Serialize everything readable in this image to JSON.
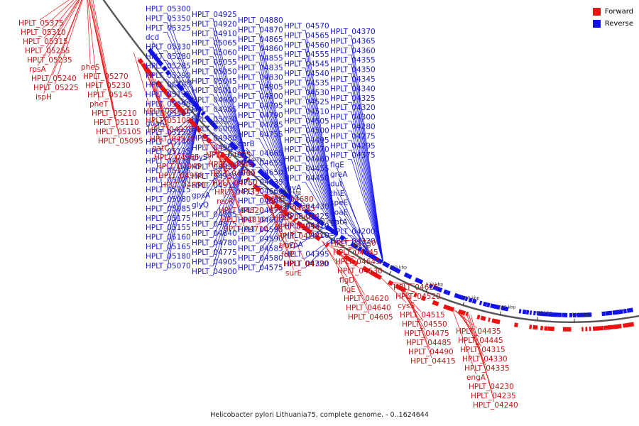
{
  "legend": {
    "forward": {
      "label": "Forward",
      "color": "#ee1111"
    },
    "reverse": {
      "label": "Reverse",
      "color": "#1111ee"
    }
  },
  "caption": "Helicobacter pylori Lithuania75, complete genome. - 0..1624644",
  "colors": {
    "backbone": "#555555",
    "tick": "#000000"
  },
  "ticks": [
    "1060 kbp",
    "1040 kbp",
    "1020 kbp",
    "1000 kbp",
    "980 kbp",
    "960 kbp",
    "940 kbp",
    "920 kbp",
    "900 kbp",
    "880 kbp",
    "860 kbp",
    "840 kbp"
  ],
  "forward_labels": [
    "HPLT_05375",
    "HPLT_05310",
    "HPLT_05315",
    "HPLT_05255",
    "HPLT_05235",
    "rpsA",
    "HPLT_05240",
    "HPLT_05225",
    "ispH",
    "pheS",
    "HPLT_05270",
    "HPLT_05230",
    "HPLT_05145",
    "pheT",
    "HPLT_05210",
    "HPLT_05110",
    "HPLT_05105",
    "HPLT_05095",
    "HPLT_05090",
    "HPLT_05100",
    "HPLT_04975",
    "HPLT_04970",
    "gatC",
    "HPLT_04965",
    "HPLT_04945",
    "HPLT_04950",
    "HPLT_04850",
    "HPLT_04825",
    "HPLT_04845",
    "HPLT_04760",
    "HPLT_04750",
    "HPLT_04735",
    "recR",
    "HPLT_04820",
    "HPLT_04810",
    "HPLT_04710",
    "HPLT_04680",
    "HPLT_04815",
    "HPLT_04685",
    "HPLT_04690",
    "HPLT_04740",
    "truD",
    "folE",
    "HPLT_04720",
    "surE",
    "HPLT_04730",
    "HPLT_04745",
    "HPLT_04645",
    "HPLT_04630",
    "flgD",
    "flgE",
    "HPLT_04620",
    "HPLT_04640",
    "HPLT_04605",
    "HPLT_04625",
    "HPLT_04520",
    "cysS",
    "HPLT_04515",
    "HPLT_04550",
    "HPLT_04475",
    "HPLT_04485",
    "HPLT_04490",
    "HPLT_04415",
    "HPLT_04435",
    "HPLT_04445",
    "HPLT_04315",
    "HPLT_04330",
    "HPLT_04335",
    "engA",
    "HPLT_04230",
    "HPLT_04235",
    "HPLT_04240"
  ],
  "reverse_labels": [
    "HPLT_05300",
    "HPLT_05350",
    "HPLT_05325",
    "dcd",
    "HPLT_05330",
    "HPLT_05280",
    "HPLT_05285",
    "HPLT_05290",
    "HPLT_05265",
    "HPLT_05195",
    "HPLT_05190",
    "HPLT_05185",
    "guaA",
    "HPLT_05150",
    "HPLT_05140",
    "HPLT_05135",
    "HPLT_05130",
    "HPLT_05125",
    "HPLT_05120",
    "HPLT_05115",
    "HPLT_05080",
    "HPLT_05085",
    "HPLT_05175",
    "HPLT_05155",
    "HPLT_05160",
    "HPLT_05165",
    "HPLT_05180",
    "HPLT_05070",
    "HPLT_04925",
    "HPLT_04920",
    "HPLT_04910",
    "HPLT_05065",
    "HPLT_05060",
    "HPLT_05055",
    "HPLT_05050",
    "HPLT_05045",
    "HPLT_05010",
    "HPLT_04990",
    "HPLT_04985",
    "HPLT_05030",
    "HPLT_05005",
    "HPLT_04980",
    "HPLT_04960",
    "glyS",
    "HPLT_04935",
    "HPLT_04930",
    "HPLT_04915",
    "gpsA",
    "glyQ",
    "HPLT_04885",
    "HPLT_04875",
    "HPLT_04840",
    "HPLT_04780",
    "HPLT_04775",
    "HPLT_04905",
    "HPLT_04900",
    "HPLT_04880",
    "HPLT_04870",
    "HPLT_04865",
    "HPLT_04860",
    "HPLT_04855",
    "HPLT_04835",
    "HPLT_04830",
    "HPLT_04805",
    "HPLT_04800",
    "HPLT_04795",
    "HPLT_04790",
    "HPLT_04785",
    "HPLT_04755",
    "carB",
    "HPLT_04665",
    "HPLT_04655",
    "HPLT_04650",
    "HPLT_04635",
    "HPLT_04660",
    "HPLT_04695",
    "HPLT_04675",
    "HPLT_04600",
    "HPLT_04595",
    "HPLT_04590",
    "HPLT_04585",
    "HPLT_04580",
    "HPLT_04575",
    "HPLT_04570",
    "HPLT_04565",
    "HPLT_04560",
    "HPLT_04555",
    "HPLT_04545",
    "HPLT_04540",
    "HPLT_04535",
    "HPLT_04530",
    "HPLT_04525",
    "HPLT_04510",
    "HPLT_04505",
    "HPLT_04500",
    "HPLT_04495",
    "HPLT_04470",
    "HPLT_04460",
    "HPLT_04455",
    "HPLT_04450",
    "ruvA",
    "ruvC",
    "HPLT_04430",
    "HPLT_04425",
    "HPLT_04420",
    "HPLT_04410",
    "hypA",
    "HPLT_04395",
    "HPLT_04390",
    "HPLT_04370",
    "HPLT_04365",
    "HPLT_04360",
    "HPLT_04355",
    "HPLT_04350",
    "HPLT_04345",
    "HPLT_04340",
    "HPLT_04325",
    "HPLT_04320",
    "HPLT_04300",
    "HPLT_04280",
    "HPLT_04275",
    "HPLT_04295",
    "HPLT_04375",
    "flgE",
    "greA",
    "dut",
    "thiE",
    "speE",
    "coaE",
    "gatA",
    "HPLT_04200",
    "HPLT_04220"
  ]
}
